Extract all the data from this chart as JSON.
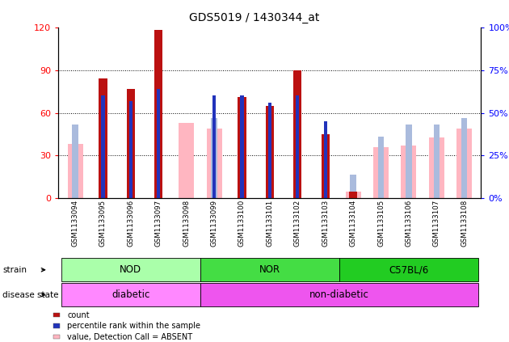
{
  "title": "GDS5019 / 1430344_at",
  "samples": [
    "GSM1133094",
    "GSM1133095",
    "GSM1133096",
    "GSM1133097",
    "GSM1133098",
    "GSM1133099",
    "GSM1133100",
    "GSM1133101",
    "GSM1133102",
    "GSM1133103",
    "GSM1133104",
    "GSM1133105",
    "GSM1133106",
    "GSM1133107",
    "GSM1133108"
  ],
  "count_values": [
    0,
    84,
    77,
    118,
    0,
    0,
    71,
    65,
    90,
    45,
    5,
    0,
    0,
    0,
    0
  ],
  "percentile_rank": [
    null,
    60,
    57,
    64,
    null,
    60,
    60,
    56,
    60,
    45,
    null,
    null,
    null,
    null,
    null
  ],
  "absent_value": [
    38,
    0,
    0,
    0,
    53,
    49,
    0,
    0,
    0,
    0,
    5,
    36,
    37,
    43,
    49
  ],
  "absent_rank": [
    43,
    0,
    0,
    0,
    0,
    47,
    0,
    0,
    0,
    0,
    14,
    36,
    43,
    43,
    47
  ],
  "groups": [
    {
      "label": "NOD",
      "start": 0,
      "end": 5,
      "color": "#AAFFAA"
    },
    {
      "label": "NOR",
      "start": 5,
      "end": 10,
      "color": "#44DD44"
    },
    {
      "label": "C57BL/6",
      "start": 10,
      "end": 15,
      "color": "#22CC22"
    }
  ],
  "disease": [
    {
      "label": "diabetic",
      "start": 0,
      "end": 5,
      "color": "#FF88FF"
    },
    {
      "label": "non-diabetic",
      "start": 5,
      "end": 15,
      "color": "#EE55EE"
    }
  ],
  "strain_label": "strain",
  "disease_label": "disease state",
  "ylim": [
    0,
    120
  ],
  "y2lim": [
    0,
    100
  ],
  "yticks_left": [
    0,
    30,
    60,
    90,
    120
  ],
  "yticks_right": [
    0,
    25,
    50,
    75,
    100
  ],
  "bar_color_count": "#BB1111",
  "bar_color_rank": "#2233BB",
  "bar_color_absent_value": "#FFB6C1",
  "bar_color_absent_rank": "#AABBDD",
  "legend_items": [
    {
      "label": "count",
      "color": "#BB1111"
    },
    {
      "label": "percentile rank within the sample",
      "color": "#2233BB"
    },
    {
      "label": "value, Detection Call = ABSENT",
      "color": "#FFB6C1"
    },
    {
      "label": "rank, Detection Call = ABSENT",
      "color": "#AABBDD"
    }
  ],
  "bg_color": "#E8E8E8"
}
